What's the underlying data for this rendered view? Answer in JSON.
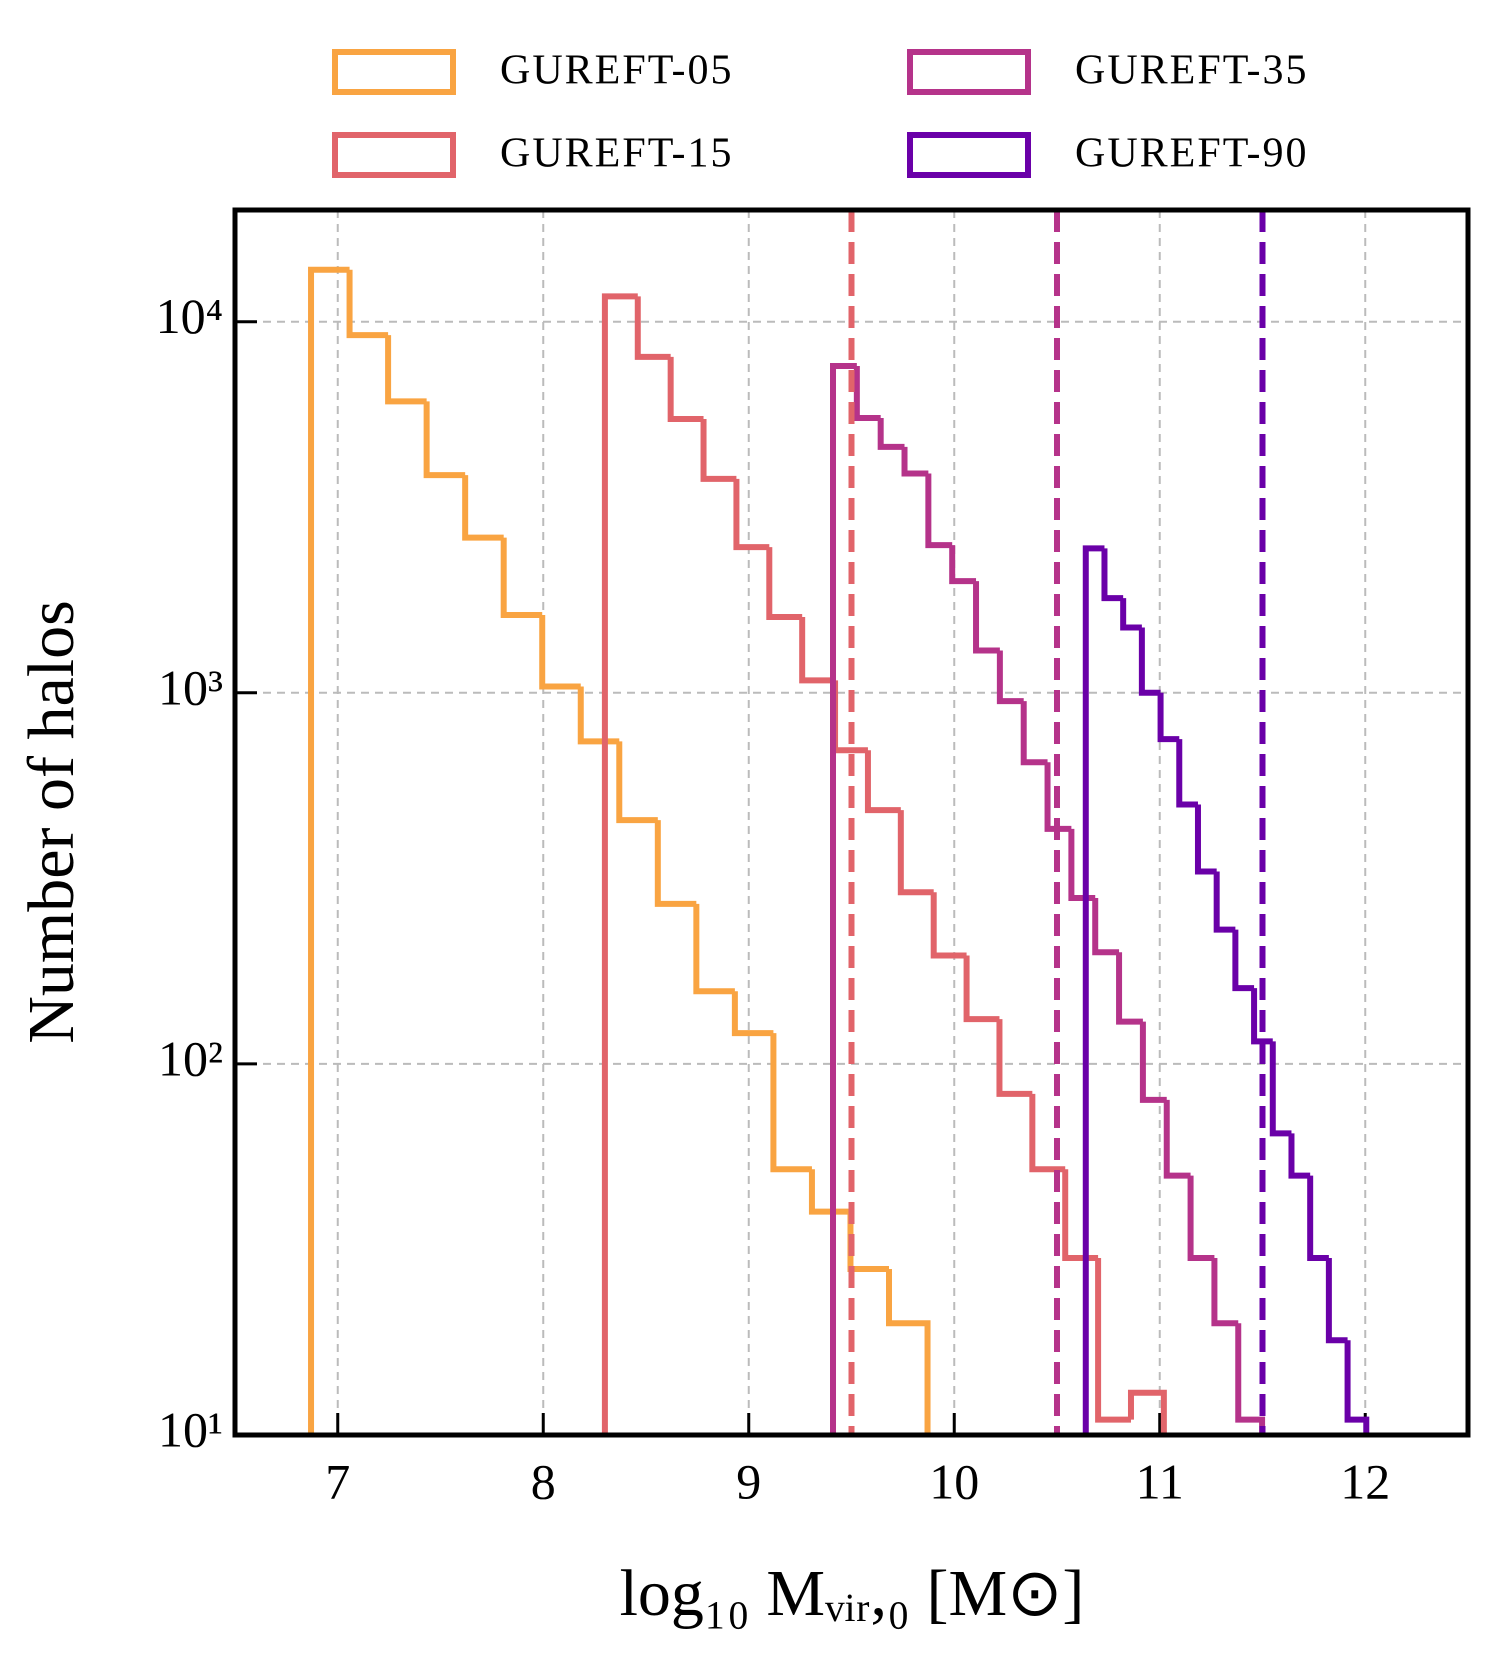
{
  "chart_data": {
    "type": "histogram",
    "xlabel": "log₁₀ Mᵥᵢᵣ,₀ [M⊙]",
    "ylabel": "Number of halos",
    "log_y": true,
    "grid": true,
    "legend": "top",
    "xlim": [
      6.5,
      12.5
    ],
    "ylim": [
      10,
      20000
    ],
    "xticks": [
      7,
      8,
      9,
      10,
      11,
      12
    ],
    "yticks": [
      {
        "value": 10,
        "label": "10¹"
      },
      {
        "value": 100,
        "label": "10²"
      },
      {
        "value": 1000,
        "label": "10³"
      },
      {
        "value": 10000,
        "label": "10⁴"
      }
    ],
    "series": [
      {
        "name": "GUREFT-05",
        "color": "#f9a442",
        "bins": [
          6.87,
          7.0575,
          7.245,
          7.4325,
          7.62,
          7.8075,
          7.995,
          8.1825,
          8.37,
          8.5575,
          8.745,
          8.9325,
          9.12,
          9.3075,
          9.495,
          9.6825,
          9.87
        ],
        "values": [
          13800,
          9200,
          6100,
          3860,
          2620,
          1620,
          1040,
          740,
          454,
          270,
          157,
          121,
          52,
          40,
          28,
          20
        ]
      },
      {
        "name": "GUREFT-15",
        "color": "#e1646a",
        "bins": [
          8.3,
          8.46,
          8.62,
          8.78,
          8.94,
          9.1,
          9.26,
          9.42,
          9.58,
          9.74,
          9.9,
          10.06,
          10.22,
          10.38,
          10.54,
          10.7,
          10.86,
          11.02
        ],
        "values": [
          11700,
          8040,
          5470,
          3770,
          2470,
          1600,
          1080,
          700,
          483,
          290,
          196,
          132,
          83,
          52,
          30,
          11,
          13
        ]
      },
      {
        "name": "GUREFT-35",
        "color": "#b5338a",
        "bins": [
          9.41,
          9.526,
          9.642,
          9.758,
          9.874,
          9.99,
          10.106,
          10.222,
          10.338,
          10.454,
          10.57,
          10.686,
          10.802,
          10.918,
          11.034,
          11.15,
          11.266,
          11.382,
          11.498
        ],
        "values": [
          7600,
          5500,
          4600,
          3900,
          2500,
          2000,
          1300,
          950,
          650,
          430,
          280,
          200,
          130,
          80,
          50,
          30,
          20,
          11
        ]
      },
      {
        "name": "GUREFT-90",
        "color": "#6a00a8",
        "bins": [
          10.64,
          10.731,
          10.822,
          10.913,
          11.004,
          11.095,
          11.186,
          11.277,
          11.368,
          11.459,
          11.55,
          11.641,
          11.732,
          11.823,
          11.914,
          12.005
        ],
        "values": [
          2450,
          1800,
          1500,
          1000,
          750,
          500,
          330,
          230,
          160,
          115,
          65,
          50,
          30,
          18,
          11
        ]
      }
    ],
    "vlines": [
      {
        "value": 9.5,
        "color": "#e1646a"
      },
      {
        "value": 10.5,
        "color": "#b5338a"
      },
      {
        "value": 11.5,
        "color": "#6a00a8"
      }
    ]
  }
}
